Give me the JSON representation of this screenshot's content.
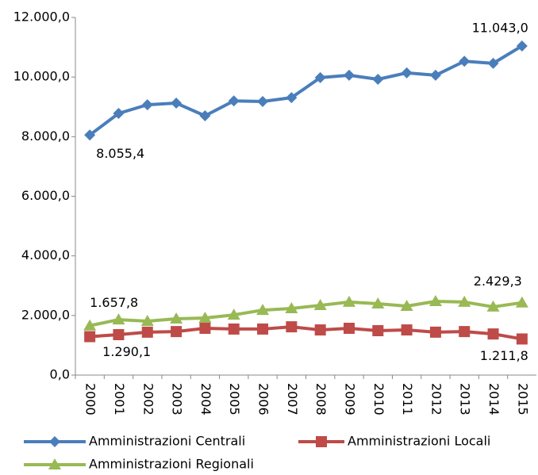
{
  "chart_data": {
    "type": "line",
    "categories": [
      "2000",
      "2001",
      "2002",
      "2003",
      "2004",
      "2005",
      "2006",
      "2007",
      "2008",
      "2009",
      "2010",
      "2011",
      "2012",
      "2013",
      "2014",
      "2015"
    ],
    "series": [
      {
        "name": "Amministrazioni Centrali",
        "color": "#4a7ebb",
        "marker": "diamond",
        "values": [
          8055.4,
          8780,
          9070,
          9125,
          8700,
          9200,
          9180,
          9310,
          9980,
          10060,
          9925,
          10140,
          10060,
          10530,
          10460,
          11043.0
        ],
        "value_labels": [
          "8.055,4",
          null,
          null,
          null,
          null,
          null,
          null,
          null,
          null,
          null,
          null,
          null,
          null,
          null,
          null,
          "11.043,0"
        ]
      },
      {
        "name": "Amministrazioni Locali",
        "color": "#be4b48",
        "marker": "square",
        "values": [
          1290.1,
          1357,
          1440,
          1460,
          1570,
          1545,
          1545,
          1620,
          1515,
          1570,
          1490,
          1515,
          1440,
          1460,
          1380,
          1211.8
        ],
        "value_labels": [
          "1.290,1",
          null,
          null,
          null,
          null,
          null,
          null,
          null,
          null,
          null,
          null,
          null,
          null,
          null,
          null,
          "1.211,8"
        ]
      },
      {
        "name": "Amministrazioni Regionali",
        "color": "#98b954",
        "marker": "triangle",
        "values": [
          1657.8,
          1860,
          1810,
          1890,
          1915,
          2020,
          2180,
          2235,
          2340,
          2450,
          2395,
          2315,
          2475,
          2450,
          2290,
          2429.3
        ],
        "value_labels": [
          "1.657,8",
          null,
          null,
          null,
          null,
          null,
          null,
          null,
          null,
          null,
          null,
          null,
          null,
          null,
          null,
          "2.429,3"
        ]
      }
    ],
    "ylim": [
      0,
      12000
    ],
    "yticks": [
      {
        "value": 0,
        "label": "0,0"
      },
      {
        "value": 2000,
        "label": "2.000,0"
      },
      {
        "value": 4000,
        "label": "4.000,0"
      },
      {
        "value": 6000,
        "label": "6.000,0"
      },
      {
        "value": 8000,
        "label": "8.000,0"
      },
      {
        "value": 10000,
        "label": "10.000,0"
      },
      {
        "value": 12000,
        "label": "12.000,0"
      }
    ],
    "grid": false,
    "legend": "bottom"
  }
}
